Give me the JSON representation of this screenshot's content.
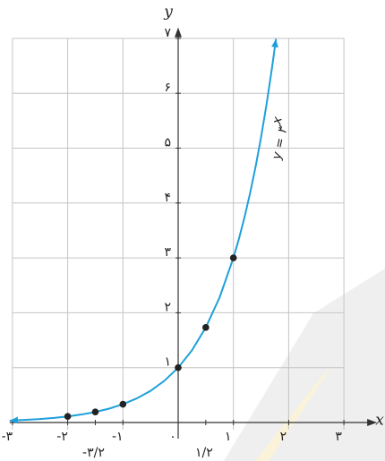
{
  "chart_data": {
    "type": "line",
    "xlabel": "x",
    "ylabel": "y",
    "xlim": [
      -3.05,
      3.6
    ],
    "ylim": [
      0,
      7.2
    ],
    "xticks": [
      {
        "value": -3,
        "label": "-۳"
      },
      {
        "value": -2,
        "label": "-۲"
      },
      {
        "value": -1,
        "label": "-۱"
      },
      {
        "value": 0,
        "label": "۰"
      },
      {
        "value": 1,
        "label": "۱"
      },
      {
        "value": 2,
        "label": "۲"
      },
      {
        "value": 3,
        "label": "۳"
      }
    ],
    "xticks_extra": [
      {
        "value": -1.5,
        "label": "-۳/۲"
      },
      {
        "value": 0.5,
        "label": "۱/۲"
      }
    ],
    "yticks": [
      {
        "value": 1,
        "label": "۱"
      },
      {
        "value": 2,
        "label": "۲"
      },
      {
        "value": 3,
        "label": "۳"
      },
      {
        "value": 4,
        "label": "۴"
      },
      {
        "value": 5,
        "label": "۵"
      },
      {
        "value": 6,
        "label": "۶"
      },
      {
        "value": 7,
        "label": "۷"
      }
    ],
    "grid": true,
    "curve": {
      "color": "#1ea0db",
      "x": [
        -3.05,
        -2.75,
        -2.5,
        -2.25,
        -2,
        -1.75,
        -1.5,
        -1.25,
        -1,
        -0.75,
        -0.5,
        -0.25,
        0,
        0.25,
        0.5,
        0.75,
        1,
        1.1,
        1.2,
        1.3,
        1.4,
        1.5,
        1.6,
        1.7,
        1.77
      ],
      "values": [
        0.035,
        0.049,
        0.064,
        0.084,
        0.111,
        0.146,
        0.192,
        0.253,
        0.333,
        0.439,
        0.577,
        0.76,
        1,
        1.316,
        1.732,
        2.28,
        3,
        3.348,
        3.737,
        4.171,
        4.655,
        5.196,
        5.8,
        6.473,
        6.99
      ]
    },
    "points": {
      "color": "#222222",
      "x": [
        -2,
        -1.5,
        -1,
        0,
        0.5,
        1
      ],
      "values": [
        0.111,
        0.192,
        0.333,
        1,
        1.732,
        3
      ]
    },
    "annotation": {
      "text": "y = ۳",
      "exponent": "x"
    }
  }
}
